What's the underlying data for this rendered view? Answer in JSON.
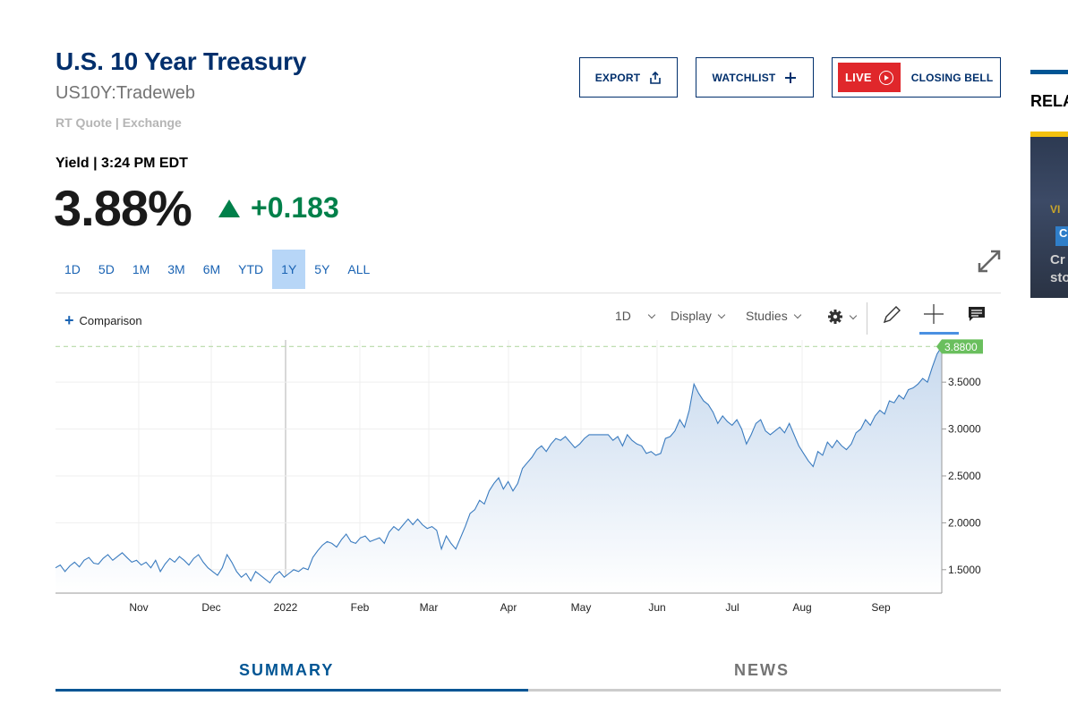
{
  "header": {
    "title": "U.S. 10 Year Treasury",
    "symbol": "US10Y:Tradeweb",
    "quote_source": "RT Quote | Exchange"
  },
  "buttons": {
    "export": "EXPORT",
    "watchlist": "WATCHLIST",
    "live": "LIVE",
    "closing_bell": "CLOSING BELL"
  },
  "quote": {
    "label": "Yield",
    "time": "3:24 PM EDT",
    "price": "3.88%",
    "change": "+0.183",
    "change_color": "#00804a"
  },
  "ranges": [
    "1D",
    "5D",
    "1M",
    "3M",
    "6M",
    "YTD",
    "1Y",
    "5Y",
    "ALL"
  ],
  "active_range": "1Y",
  "toolbar": {
    "comparison": "Comparison",
    "interval": "1D",
    "display": "Display",
    "studies": "Studies"
  },
  "chart_data": {
    "type": "area",
    "x_ticks": [
      "Nov",
      "Dec",
      "2022",
      "Feb",
      "Mar",
      "Apr",
      "May",
      "Jun",
      "Jul",
      "Aug",
      "Sep"
    ],
    "y_ticks": [
      "1.5000",
      "2.0000",
      "2.5000",
      "3.0000",
      "3.5000"
    ],
    "last_value_label": "3.8800",
    "last_value": 3.88,
    "ylim": [
      1.25,
      3.95
    ],
    "line_color": "#3a7bbf",
    "fill_color": "#c7d9ee",
    "series": [
      {
        "values": [
          1.52,
          1.55,
          1.48,
          1.54,
          1.58,
          1.53,
          1.6,
          1.63,
          1.57,
          1.56,
          1.62,
          1.66,
          1.6,
          1.64,
          1.68,
          1.63,
          1.58,
          1.6,
          1.55,
          1.58,
          1.52,
          1.6,
          1.48,
          1.56,
          1.62,
          1.58,
          1.64,
          1.6,
          1.55,
          1.62,
          1.66,
          1.58,
          1.52,
          1.48,
          1.44,
          1.52,
          1.66,
          1.58,
          1.48,
          1.42,
          1.46,
          1.38,
          1.48,
          1.44,
          1.4,
          1.36,
          1.44,
          1.48,
          1.42,
          1.46,
          1.5,
          1.48,
          1.52,
          1.5,
          1.63,
          1.7,
          1.76,
          1.8,
          1.78,
          1.74,
          1.82,
          1.88,
          1.8,
          1.78,
          1.84,
          1.86,
          1.8,
          1.82,
          1.84,
          1.78,
          1.9,
          1.96,
          1.92,
          1.98,
          2.04,
          1.98,
          2.04,
          1.98,
          1.94,
          1.96,
          1.92,
          1.72,
          1.86,
          1.78,
          1.72,
          1.84,
          1.96,
          2.1,
          2.14,
          2.24,
          2.2,
          2.34,
          2.42,
          2.48,
          2.36,
          2.44,
          2.34,
          2.42,
          2.58,
          2.64,
          2.7,
          2.78,
          2.82,
          2.76,
          2.84,
          2.9,
          2.88,
          2.92,
          2.86,
          2.8,
          2.84,
          2.9,
          2.94,
          2.94,
          2.94,
          2.94,
          2.94,
          2.88,
          2.92,
          2.82,
          2.94,
          2.88,
          2.84,
          2.82,
          2.74,
          2.76,
          2.72,
          2.74,
          2.9,
          2.92,
          2.98,
          3.1,
          3.02,
          3.2,
          3.48,
          3.38,
          3.3,
          3.26,
          3.18,
          3.06,
          3.14,
          3.08,
          3.04,
          3.1,
          3.0,
          2.84,
          2.94,
          3.06,
          3.1,
          2.98,
          2.94,
          2.98,
          3.02,
          2.96,
          3.06,
          2.94,
          2.82,
          2.74,
          2.66,
          2.6,
          2.76,
          2.72,
          2.86,
          2.8,
          2.88,
          2.82,
          2.78,
          2.84,
          2.96,
          3.0,
          3.1,
          3.04,
          3.14,
          3.2,
          3.16,
          3.3,
          3.28,
          3.36,
          3.32,
          3.42,
          3.44,
          3.48,
          3.54,
          3.5,
          3.66,
          3.8,
          3.88
        ]
      }
    ]
  },
  "tabs": {
    "summary": "SUMMARY",
    "news": "NEWS"
  },
  "sidebar": {
    "heading": "RELA",
    "card_line1": "VI",
    "card_badge": "C",
    "card_line2": "Cr",
    "card_line3": "sto"
  }
}
